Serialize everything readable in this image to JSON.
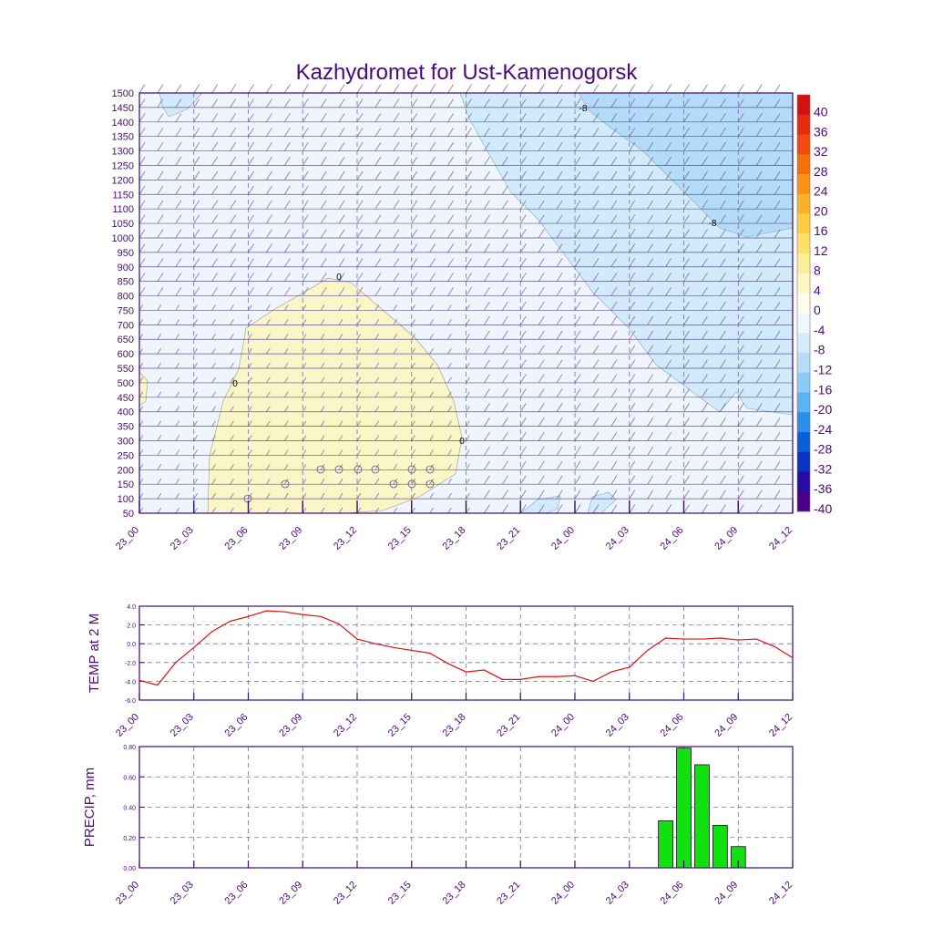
{
  "title": "Kazhydromet for Ust-Kamenogorsk",
  "colors": {
    "text": "#4b0b7a",
    "axis": "#3b0a6e",
    "grid": "#6f6fb0",
    "temp_line": "#e01010",
    "precip_bar": "#11e011",
    "cross_bg": "#eef5fd",
    "warm_zone": "#fbf6c8",
    "cold_zone": "#d2ebfb",
    "colder_zone": "#b4dcf8"
  },
  "time_labels": [
    "23_00",
    "23_03",
    "23_06",
    "23_09",
    "23_12",
    "23_15",
    "23_18",
    "23_21",
    "24_00",
    "24_03",
    "24_06",
    "24_09",
    "24_12"
  ],
  "chart_data": [
    {
      "type": "heatmap",
      "title": "Kazhydromet for Ust-Kamenogorsk",
      "x": [
        "23_00",
        "23_03",
        "23_06",
        "23_09",
        "23_12",
        "23_15",
        "23_18",
        "23_21",
        "24_00",
        "24_03",
        "24_06",
        "24_09",
        "24_12"
      ],
      "y_ticks": [
        50,
        100,
        150,
        200,
        250,
        300,
        350,
        400,
        450,
        500,
        550,
        600,
        650,
        700,
        750,
        800,
        850,
        900,
        950,
        1000,
        1050,
        1100,
        1150,
        1200,
        1250,
        1300,
        1350,
        1400,
        1450,
        1500
      ],
      "ylim": [
        50,
        1500
      ],
      "contour_labels": [
        "0",
        "0",
        "0",
        "-8",
        "-8"
      ],
      "colorbar": {
        "labels": [
          "40",
          "36",
          "32",
          "28",
          "24",
          "20",
          "16",
          "12",
          "8",
          "4",
          "0",
          "-4",
          "-8",
          "-12",
          "-16",
          "-20",
          "-24",
          "-28",
          "-32",
          "-36",
          "-40"
        ],
        "colors": [
          "#d51010",
          "#e52a10",
          "#ef4a10",
          "#f3700e",
          "#f7931a",
          "#f9b22c",
          "#fbcc44",
          "#fde06a",
          "#fcee99",
          "#fdf6c6",
          "#fffcea",
          "#eff7fd",
          "#d7ecfb",
          "#b6ddf8",
          "#8fcaf4",
          "#5fb2f0",
          "#2c8ee8",
          "#0a5fd8",
          "#0a33c2",
          "#2a0aa5",
          "#4a008a"
        ]
      }
    },
    {
      "type": "line",
      "x": [
        "23_00",
        "23_01",
        "23_02",
        "23_03",
        "23_04",
        "23_05",
        "23_06",
        "23_07",
        "23_08",
        "23_09",
        "23_10",
        "23_11",
        "23_12",
        "23_13",
        "23_14",
        "23_15",
        "23_16",
        "23_17",
        "23_18",
        "23_19",
        "23_20",
        "23_21",
        "23_22",
        "23_23",
        "24_00",
        "24_01",
        "24_02",
        "24_03",
        "24_04",
        "24_05",
        "24_06",
        "24_07",
        "24_08",
        "24_09",
        "24_10",
        "24_11",
        "24_12"
      ],
      "y": [
        -3.9,
        -4.4,
        -2.0,
        -0.4,
        1.3,
        2.4,
        2.9,
        3.5,
        3.4,
        3.1,
        2.9,
        2.1,
        0.5,
        0.0,
        -0.4,
        -0.7,
        -1.0,
        -2.1,
        -3.0,
        -2.8,
        -3.8,
        -3.8,
        -3.5,
        -3.5,
        -3.4,
        -4.0,
        -3.0,
        -2.5,
        -0.7,
        0.6,
        0.5,
        0.5,
        0.6,
        0.4,
        0.5,
        -0.3,
        -1.5
      ],
      "ylabel": "TEMP at 2 M",
      "ylim": [
        -6.0,
        4.0
      ],
      "y_ticks": [
        "4.0",
        "2.0",
        "0.0",
        "-2.0",
        "-4.0",
        "-6.0"
      ],
      "x_ticks": [
        "23_00",
        "23_03",
        "23_06",
        "23_09",
        "23_12",
        "23_15",
        "23_18",
        "23_21",
        "24_00",
        "24_03",
        "24_06",
        "24_09",
        "24_12"
      ],
      "grid": true
    },
    {
      "type": "bar",
      "categories": [
        "24_05",
        "24_06",
        "24_07",
        "24_08",
        "24_09"
      ],
      "values": [
        0.31,
        0.79,
        0.68,
        0.28,
        0.14
      ],
      "ylabel": "PRECIP, mm",
      "ylim": [
        0,
        0.8
      ],
      "y_ticks": [
        "0.80",
        "0.60",
        "0.40",
        "0.20",
        "0.00"
      ],
      "x_ticks": [
        "23_00",
        "23_03",
        "23_06",
        "23_09",
        "23_12",
        "23_15",
        "23_18",
        "23_21",
        "24_00",
        "24_03",
        "24_06",
        "24_09",
        "24_12"
      ],
      "grid": true
    }
  ]
}
